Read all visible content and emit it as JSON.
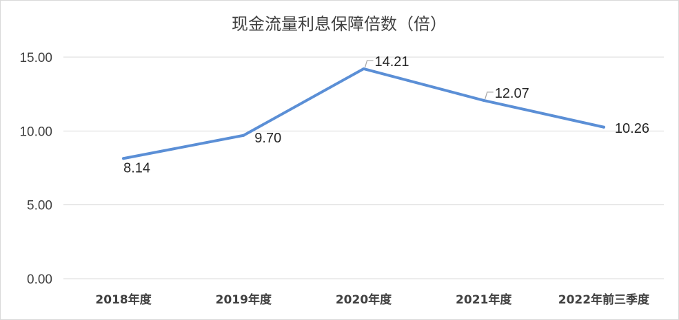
{
  "chart_data": {
    "type": "line",
    "title": "现金流量利息保障倍数（倍）",
    "categories": [
      "2018年度",
      "2019年度",
      "2020年度",
      "2021年度",
      "2022年前三季度"
    ],
    "series": [
      {
        "values": [
          8.14,
          9.7,
          14.21,
          12.07,
          10.26
        ],
        "labels": [
          "8.14",
          "9.70",
          "14.21",
          "12.07",
          "10.26"
        ],
        "color": "#5b8fd6"
      }
    ],
    "ylim": [
      0,
      15
    ],
    "yticks": [
      0,
      5,
      10,
      15
    ],
    "ytick_labels": [
      "0.00",
      "5.00",
      "10.00",
      "15.00"
    ],
    "grid": true,
    "legend": "none"
  }
}
